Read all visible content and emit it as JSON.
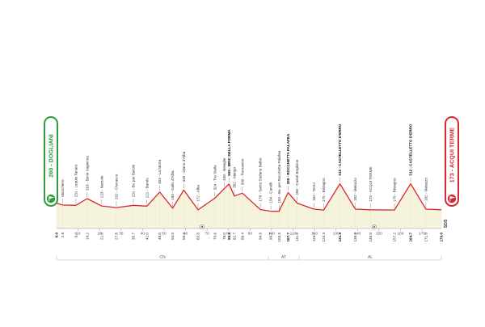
{
  "start": {
    "label": "260 - DOGLIANI",
    "color": "#2e9c3a"
  },
  "finish": {
    "label": "173 - ACQUI TERME",
    "color": "#d7282f"
  },
  "profile_color": "#d7282f",
  "fill_color": "#f6f3dd",
  "sprint_note": "SDS",
  "axis_ticks": [
    "10",
    "20",
    "30",
    "40",
    "50",
    "60",
    "70",
    "80",
    "90",
    "100",
    "110",
    "120",
    "130",
    "140",
    "150",
    "160",
    "170"
  ],
  "regions": [
    "CN",
    "AT",
    "AL"
  ],
  "waypoints": [
    {
      "km": 0.0,
      "km_label": "0.0",
      "alt": 260,
      "name": "",
      "bold": true
    },
    {
      "km": 2.8,
      "km_label": "2.8",
      "alt": 235,
      "name": "Monchiero",
      "bold": false
    },
    {
      "km": 9.0,
      "km_label": "9.0",
      "alt": 231,
      "name": "231 - Lequio Tanaro",
      "bold": false
    },
    {
      "km": 14.2,
      "km_label": "14.2",
      "alt": 318,
      "name": "318 - Bene Vagienna",
      "bold": false
    },
    {
      "km": 21.0,
      "km_label": "21.0",
      "alt": 223,
      "name": "223 - Narzole",
      "bold": false
    },
    {
      "km": 27.8,
      "km_label": "27.8",
      "alt": 202,
      "name": "202 - Cherasco",
      "bold": false
    },
    {
      "km": 35.7,
      "km_label": "35.7",
      "alt": 231,
      "name": "231 - Bv. per Barolo",
      "bold": false
    },
    {
      "km": 42.0,
      "km_label": "42.0",
      "alt": 221,
      "name": "221 - Barolo",
      "bold": false
    },
    {
      "km": 48.0,
      "km_label": "48.0",
      "alt": 404,
      "name": "404 - La Morra",
      "bold": false
    },
    {
      "km": 54.0,
      "km_label": "54.0",
      "alt": 194,
      "name": "194 - Gallo d'Alba",
      "bold": false
    },
    {
      "km": 59.2,
      "km_label": "59.2",
      "alt": 430,
      "name": "430 - Diano d'Alba",
      "bold": false
    },
    {
      "km": 65.8,
      "km_label": "65.8",
      "alt": 172,
      "name": "172 - Alba",
      "bold": false
    },
    {
      "km": 73.6,
      "km_label": "73.6",
      "alt": 324,
      "name": "324 - Tre Stelle",
      "bold": false
    },
    {
      "km": 78.0,
      "km_label": "78.0",
      "alt": 448,
      "name": "448 - Neviglie",
      "bold": false
    },
    {
      "km": 80.2,
      "km_label": "80.2",
      "alt": 509,
      "name": "509 - BRIC DELLA FORMA",
      "bold": true
    },
    {
      "km": 82.7,
      "km_label": "82.7",
      "alt": 352,
      "name": "352 - Mango",
      "bold": false
    },
    {
      "km": 86.4,
      "km_label": "86.4",
      "alt": 390,
      "name": "390 - Romanino",
      "bold": false
    },
    {
      "km": 94.8,
      "km_label": "94.8",
      "alt": 176,
      "name": "176 - Santo Stefano Belbo",
      "bold": false
    },
    {
      "km": 99.7,
      "km_label": "99.7",
      "alt": 154,
      "name": "154 - Canelli",
      "bold": false
    },
    {
      "km": 103.5,
      "km_label": "103.5",
      "alt": 153,
      "name": "153 - Bv. per Rocchetta Palafea",
      "bold": false
    },
    {
      "km": 107.7,
      "km_label": "107.7",
      "alt": 398,
      "name": "398 - ROCCHETTA PALAFEA",
      "bold": true
    },
    {
      "km": 111.9,
      "km_label": "111.9",
      "alt": 260,
      "name": "260 - Castel Boglione",
      "bold": false
    },
    {
      "km": 119.7,
      "km_label": "119.7",
      "alt": 182,
      "name": "182 - Terzo",
      "bold": false
    },
    {
      "km": 124.3,
      "km_label": "124.3",
      "alt": 170,
      "name": "170 - Bistagno",
      "bold": false
    },
    {
      "km": 131.8,
      "km_label": "131.8",
      "alt": 512,
      "name": "512 - CASTELLETTO D'ERRO",
      "bold": true
    },
    {
      "km": 139.0,
      "km_label": "139.0",
      "alt": 182,
      "name": "182 - Melazzo",
      "bold": false
    },
    {
      "km": 146.0,
      "km_label": "146.0",
      "alt": 173,
      "name": "173 - ACQUI TERME",
      "bold": false
    },
    {
      "km": 157.2,
      "km_label": "157.2",
      "alt": 170,
      "name": "170 - Bistagno",
      "bold": false
    },
    {
      "km": 164.7,
      "km_label": "164.7",
      "alt": 512,
      "name": "512 - CASTELLETTO D'ERRO",
      "bold": true
    },
    {
      "km": 171.8,
      "km_label": "171.8",
      "alt": 182,
      "name": "182 - Melazzo",
      "bold": false
    },
    {
      "km": 179.0,
      "km_label": "179.0",
      "alt": 173,
      "name": "",
      "bold": true
    }
  ]
}
